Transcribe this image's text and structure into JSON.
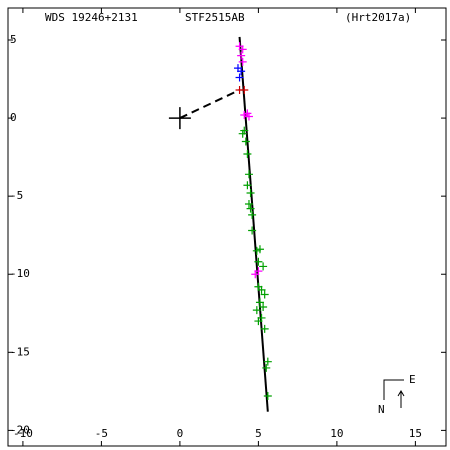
{
  "chart_data": {
    "type": "scatter",
    "labels": {
      "left": "WDS 19246+2131",
      "center": "STF2515AB",
      "right": "(Hrt2017a)",
      "east": "E",
      "north": "N"
    },
    "xlim": [
      -10.95,
      16.95
    ],
    "ylim": [
      -21.0,
      7.05
    ],
    "xticks": [
      -10,
      -5,
      0,
      5,
      10,
      15
    ],
    "yticks": [
      5,
      0,
      -5,
      -10,
      -15,
      -20
    ],
    "primary": {
      "x": 0,
      "y": 0
    },
    "orbit": {
      "x": [
        3.8,
        5.6
      ],
      "y": [
        5.2,
        -18.8
      ]
    },
    "connector": {
      "x": [
        0,
        3.8
      ],
      "y": [
        0,
        1.8
      ]
    },
    "series": [
      {
        "color": "#00a000",
        "x": [
          4.1,
          4.0,
          4.2,
          4.3,
          4.4,
          4.3,
          4.5,
          4.4,
          4.5,
          4.6,
          4.6,
          4.9,
          5.1,
          5.0,
          5.3,
          5.0,
          5.2,
          5.4,
          5.1,
          5.3,
          4.9,
          5.2,
          5.0,
          5.4,
          5.6,
          5.5,
          5.6
        ],
        "y": [
          -0.8,
          -1.0,
          -1.5,
          -2.3,
          -3.6,
          -4.3,
          -4.8,
          -5.5,
          -5.8,
          -6.2,
          -7.2,
          -8.5,
          -8.4,
          -9.2,
          -9.5,
          -10.8,
          -11.0,
          -11.3,
          -11.8,
          -12.1,
          -12.3,
          -12.8,
          -13.0,
          -13.5,
          -15.6,
          -16.0,
          -17.8
        ]
      },
      {
        "color": "#ff00ff",
        "x": [
          3.8,
          4.0,
          3.9,
          4.0,
          4.1,
          4.4,
          4.3,
          5.0,
          4.8
        ],
        "y": [
          4.6,
          4.4,
          4.0,
          3.6,
          0.2,
          0.1,
          0.3,
          -9.8,
          -10.0
        ]
      },
      {
        "color": "#0000ff",
        "x": [
          3.7,
          3.9,
          3.8
        ],
        "y": [
          3.2,
          3.0,
          2.6
        ]
      },
      {
        "color": "#cc0000",
        "x": [
          3.8,
          4.1
        ],
        "y": [
          1.8,
          1.8
        ]
      }
    ]
  }
}
